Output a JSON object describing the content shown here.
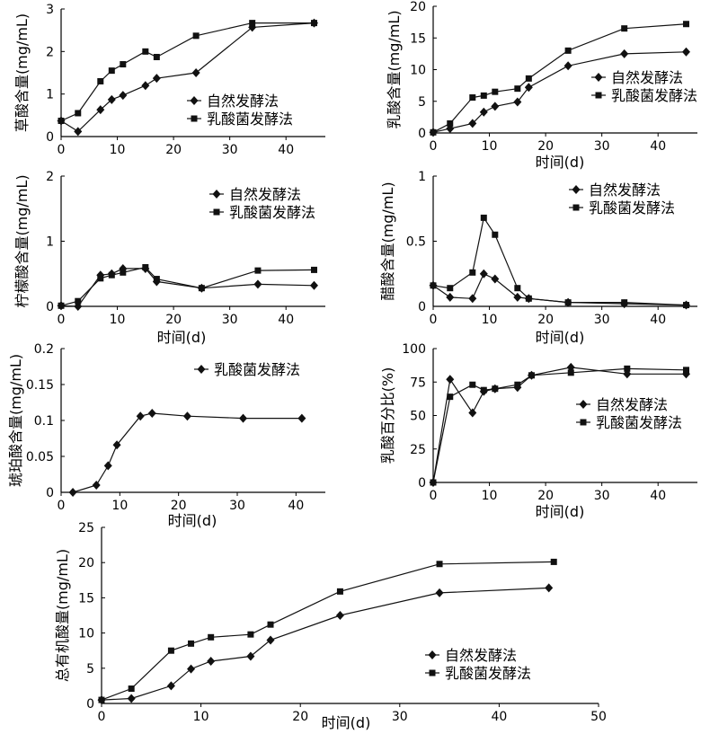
{
  "chart_data": [
    {
      "id": "oxalic",
      "type": "line",
      "xlabel": "",
      "ylabel": "草酸含量(mg/mL)",
      "xlim": [
        0,
        47
      ],
      "ylim": [
        0,
        3
      ],
      "xticks": [
        0,
        10,
        20,
        30,
        40
      ],
      "yticks": [
        0,
        1,
        2,
        3
      ],
      "legend_position": "bottom-right",
      "series": [
        {
          "name": "自然发酵法",
          "marker": "diamond",
          "points": [
            [
              0,
              0.37
            ],
            [
              3,
              0.12
            ],
            [
              7,
              0.63
            ],
            [
              9,
              0.87
            ],
            [
              11,
              0.97
            ],
            [
              15,
              1.2
            ],
            [
              17,
              1.37
            ],
            [
              24,
              1.5
            ],
            [
              34,
              2.57
            ],
            [
              45,
              2.67
            ]
          ]
        },
        {
          "name": "乳酸菌发酵法",
          "marker": "square",
          "points": [
            [
              0,
              0.37
            ],
            [
              3,
              0.55
            ],
            [
              7,
              1.3
            ],
            [
              9,
              1.55
            ],
            [
              11,
              1.7
            ],
            [
              15,
              2.0
            ],
            [
              17,
              1.87
            ],
            [
              24,
              2.37
            ],
            [
              34,
              2.67
            ],
            [
              45,
              2.67
            ]
          ]
        }
      ]
    },
    {
      "id": "lactic",
      "type": "line",
      "xlabel": "时间(d)",
      "ylabel": "乳酸含量(mg/mL)",
      "xlim": [
        0,
        47
      ],
      "ylim": [
        0,
        20
      ],
      "xticks": [
        0,
        10,
        20,
        30,
        40
      ],
      "yticks": [
        0,
        5,
        10,
        15,
        20
      ],
      "legend_position": "middle-right",
      "series": [
        {
          "name": "自然发酵法",
          "marker": "diamond",
          "points": [
            [
              0,
              0.1
            ],
            [
              3,
              0.7
            ],
            [
              7,
              1.5
            ],
            [
              9,
              3.3
            ],
            [
              11,
              4.2
            ],
            [
              15,
              4.9
            ],
            [
              17,
              7.2
            ],
            [
              24,
              10.6
            ],
            [
              34,
              12.5
            ],
            [
              45,
              12.8
            ]
          ]
        },
        {
          "name": "乳酸菌发酵法",
          "marker": "square",
          "points": [
            [
              0,
              0.1
            ],
            [
              3,
              1.5
            ],
            [
              7,
              5.6
            ],
            [
              9,
              5.9
            ],
            [
              11,
              6.5
            ],
            [
              15,
              7.0
            ],
            [
              17,
              8.6
            ],
            [
              24,
              13.0
            ],
            [
              34,
              16.5
            ],
            [
              45,
              17.2
            ]
          ]
        }
      ]
    },
    {
      "id": "citric",
      "type": "line",
      "xlabel": "时间(d)",
      "ylabel": "柠檬酸含量(mg/mL)",
      "xlim": [
        0,
        47
      ],
      "ylim": [
        0,
        2
      ],
      "xticks": [
        0,
        10,
        20,
        30,
        40
      ],
      "yticks": [
        0,
        1,
        2
      ],
      "legend_position": "top-right",
      "series": [
        {
          "name": "自然发酵法",
          "marker": "diamond",
          "points": [
            [
              0,
              0.01
            ],
            [
              3,
              0.0
            ],
            [
              7,
              0.48
            ],
            [
              9,
              0.5
            ],
            [
              11,
              0.58
            ],
            [
              15,
              0.58
            ],
            [
              17,
              0.38
            ],
            [
              25,
              0.28
            ],
            [
              35,
              0.34
            ],
            [
              45,
              0.32
            ]
          ]
        },
        {
          "name": "乳酸菌发酵法",
          "marker": "square",
          "points": [
            [
              0,
              0.01
            ],
            [
              3,
              0.08
            ],
            [
              7,
              0.43
            ],
            [
              9,
              0.48
            ],
            [
              11,
              0.52
            ],
            [
              15,
              0.6
            ],
            [
              17,
              0.42
            ],
            [
              25,
              0.28
            ],
            [
              35,
              0.55
            ],
            [
              45,
              0.56
            ]
          ]
        }
      ]
    },
    {
      "id": "acetic",
      "type": "line",
      "xlabel": "时间(d)",
      "ylabel": "醋酸含量(mg/mL)",
      "xlim": [
        0,
        47
      ],
      "ylim": [
        0,
        1
      ],
      "xticks": [
        0,
        10,
        20,
        30,
        40
      ],
      "yticks": [
        0,
        0.5,
        1
      ],
      "legend_position": "top-right",
      "series": [
        {
          "name": "自然发酵法",
          "marker": "diamond",
          "points": [
            [
              0,
              0.16
            ],
            [
              3,
              0.07
            ],
            [
              7,
              0.06
            ],
            [
              9,
              0.25
            ],
            [
              11,
              0.21
            ],
            [
              15,
              0.07
            ],
            [
              17,
              0.06
            ],
            [
              24,
              0.03
            ],
            [
              34,
              0.02
            ],
            [
              45,
              0.01
            ]
          ]
        },
        {
          "name": "乳酸菌发酵法",
          "marker": "square",
          "points": [
            [
              0,
              0.16
            ],
            [
              3,
              0.14
            ],
            [
              7,
              0.26
            ],
            [
              9,
              0.68
            ],
            [
              11,
              0.55
            ],
            [
              15,
              0.14
            ],
            [
              17,
              0.06
            ],
            [
              24,
              0.03
            ],
            [
              34,
              0.03
            ],
            [
              45,
              0.01
            ]
          ]
        }
      ]
    },
    {
      "id": "succinic",
      "type": "line",
      "xlabel": "时间(d)",
      "ylabel": "琥珀酸含量(mg/mL)",
      "xlim": [
        0,
        45
      ],
      "ylim": [
        0,
        0.2
      ],
      "xticks": [
        0,
        10,
        20,
        30,
        40
      ],
      "yticks": [
        0,
        0.05,
        0.1,
        0.15,
        0.2
      ],
      "legend_position": "top-right",
      "series": [
        {
          "name": "乳酸菌发酵法",
          "marker": "diamond",
          "points": [
            [
              2,
              0.0
            ],
            [
              6,
              0.01
            ],
            [
              8,
              0.037
            ],
            [
              9.5,
              0.066
            ],
            [
              13.5,
              0.106
            ],
            [
              15.5,
              0.11
            ],
            [
              21.5,
              0.106
            ],
            [
              31,
              0.103
            ],
            [
              41,
              0.103
            ]
          ]
        }
      ]
    },
    {
      "id": "lactic_pct",
      "type": "line",
      "xlabel": "时间(d)",
      "ylabel": "乳酸百分比(%)",
      "xlim": [
        0,
        47
      ],
      "ylim": [
        0,
        100
      ],
      "xticks": [
        0,
        10,
        20,
        30,
        40
      ],
      "yticks": [
        0,
        25,
        50,
        75,
        100
      ],
      "legend_position": "middle-right",
      "series": [
        {
          "name": "自然发酵法",
          "marker": "diamond",
          "points": [
            [
              0,
              0
            ],
            [
              3,
              77
            ],
            [
              7,
              52
            ],
            [
              9,
              68
            ],
            [
              11,
              70
            ],
            [
              15,
              71
            ],
            [
              17.5,
              80
            ],
            [
              24.5,
              86
            ],
            [
              34.5,
              81
            ],
            [
              45,
              81
            ]
          ]
        },
        {
          "name": "乳酸菌发酵法",
          "marker": "square",
          "points": [
            [
              0,
              0
            ],
            [
              3,
              64
            ],
            [
              7,
              73
            ],
            [
              9,
              69
            ],
            [
              11,
              70
            ],
            [
              15,
              73
            ],
            [
              17.5,
              80
            ],
            [
              24.5,
              82
            ],
            [
              34.5,
              85
            ],
            [
              45,
              84
            ]
          ]
        }
      ]
    },
    {
      "id": "total",
      "type": "line",
      "xlabel": "时间(d)",
      "ylabel": "总有机酸量(mg/mL)",
      "xlim": [
        0,
        50
      ],
      "ylim": [
        0,
        25
      ],
      "xticks": [
        0,
        10,
        20,
        30,
        40,
        50
      ],
      "yticks": [
        0,
        5,
        10,
        15,
        20,
        25
      ],
      "legend_position": "bottom-right",
      "series": [
        {
          "name": "自然发酵法",
          "marker": "diamond",
          "points": [
            [
              0,
              0.5
            ],
            [
              3,
              0.7
            ],
            [
              7,
              2.5
            ],
            [
              9,
              4.9
            ],
            [
              11,
              6.0
            ],
            [
              15,
              6.7
            ],
            [
              17,
              9.0
            ],
            [
              24,
              12.5
            ],
            [
              34,
              15.7
            ],
            [
              45,
              16.4
            ]
          ]
        },
        {
          "name": "乳酸菌发酵法",
          "marker": "square",
          "points": [
            [
              0,
              0.5
            ],
            [
              3,
              2.1
            ],
            [
              7,
              7.5
            ],
            [
              9,
              8.5
            ],
            [
              11,
              9.4
            ],
            [
              15,
              9.8
            ],
            [
              17,
              11.2
            ],
            [
              24,
              15.9
            ],
            [
              34,
              19.8
            ],
            [
              45.5,
              20.1
            ]
          ]
        }
      ]
    }
  ]
}
